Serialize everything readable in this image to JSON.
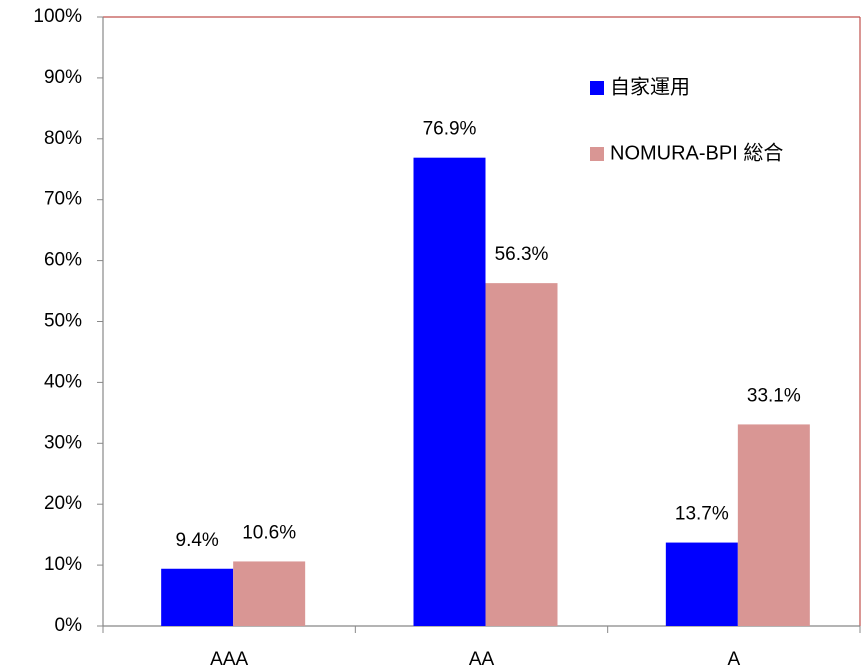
{
  "chart_data": {
    "type": "bar",
    "categories": [
      "AAA",
      "AA",
      "A"
    ],
    "series": [
      {
        "name": "自家運用",
        "color": "#0000ff",
        "values": [
          9.4,
          76.9,
          13.7
        ],
        "value_labels": [
          "9.4%",
          "76.9%",
          "13.7%"
        ]
      },
      {
        "name": "NOMURA-BPI 総合",
        "color": "#d99694",
        "values": [
          10.6,
          56.3,
          33.1
        ],
        "value_labels": [
          "10.6%",
          "56.3%",
          "33.1%"
        ]
      }
    ],
    "ylim": [
      0,
      100
    ],
    "yticks": [
      {
        "value": 0,
        "label": "0%"
      },
      {
        "value": 10,
        "label": "10%"
      },
      {
        "value": 20,
        "label": "20%"
      },
      {
        "value": 30,
        "label": "30%"
      },
      {
        "value": 40,
        "label": "40%"
      },
      {
        "value": 50,
        "label": "50%"
      },
      {
        "value": 60,
        "label": "60%"
      },
      {
        "value": 70,
        "label": "70%"
      },
      {
        "value": 80,
        "label": "80%"
      },
      {
        "value": 90,
        "label": "90%"
      },
      {
        "value": 100,
        "label": "100%"
      }
    ],
    "grid": false,
    "legend": "upper right"
  }
}
